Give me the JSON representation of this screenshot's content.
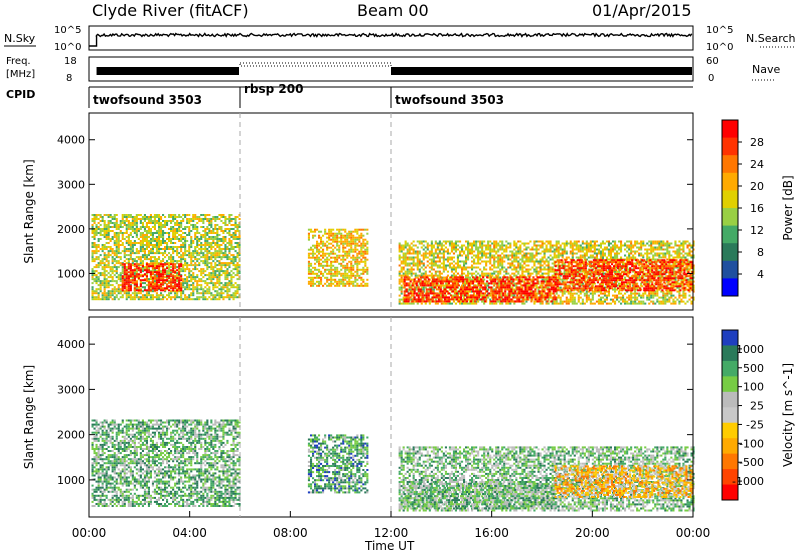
{
  "header": {
    "station": "Clyde River (fitACF)",
    "beam": "Beam 00",
    "date": "01/Apr/2015"
  },
  "strip_panels": {
    "nsky_label": "N.Sky",
    "nsky_ticks": [
      "10^5",
      "10^0"
    ],
    "nsearch_label": "N.Search",
    "nsearch_ticks": [
      "10^5",
      "10^0"
    ],
    "freq_label_line1": "Freq.",
    "freq_label_line2": "[MHz]",
    "freq_ticks": [
      "18",
      "8"
    ],
    "nave_label": "Nave",
    "nave_ticks": [
      "60",
      "0"
    ],
    "cpid_label": "CPID",
    "cpid_segments": [
      {
        "name": "twofsound 3503",
        "start": 0,
        "end": 6
      },
      {
        "name": "rbsp 200",
        "start": 6,
        "end": 12
      },
      {
        "name": "twofsound 3503",
        "start": 12,
        "end": 24
      }
    ]
  },
  "chart_data": [
    {
      "type": "heatmap",
      "panel": "power",
      "ylabel": "Slant Range [km]",
      "xlabel": "Time UT",
      "xlim": [
        0,
        24
      ],
      "ylim": [
        180,
        4600
      ],
      "yticks": [
        "1000",
        "2000",
        "3000",
        "4000"
      ],
      "xticks": [
        "00:00",
        "04:00",
        "08:00",
        "12:00",
        "16:00",
        "20:00",
        "00:00"
      ],
      "colorbar": {
        "label": "Power [dB]",
        "ticks": [
          "28",
          "24",
          "20",
          "16",
          "12",
          "8",
          "4"
        ],
        "colors": [
          "#ff0000",
          "#ff3300",
          "#ff7700",
          "#ffaa00",
          "#e0d000",
          "#99d044",
          "#44aa66",
          "#2a7a5a",
          "#1f4f9f",
          "#0000ff"
        ]
      },
      "regions": [
        {
          "t0": 0.1,
          "t1": 6.0,
          "r0": 400,
          "r1": 2300,
          "level": 0.5
        },
        {
          "t0": 1.3,
          "t1": 3.7,
          "r0": 600,
          "r1": 1200,
          "level": 0.95
        },
        {
          "t0": 8.7,
          "t1": 11.1,
          "r0": 700,
          "r1": 2000,
          "level": 0.6
        },
        {
          "t0": 12.3,
          "t1": 24.0,
          "r0": 300,
          "r1": 1700,
          "level": 0.55
        },
        {
          "t0": 12.5,
          "t1": 18.5,
          "r0": 350,
          "r1": 900,
          "level": 0.95
        },
        {
          "t0": 18.5,
          "t1": 24.0,
          "r0": 600,
          "r1": 1300,
          "level": 0.9
        }
      ]
    },
    {
      "type": "heatmap",
      "panel": "velocity",
      "ylabel": "Slant Range [km]",
      "xlabel": "Time UT",
      "xlim": [
        0,
        24
      ],
      "ylim": [
        180,
        4600
      ],
      "yticks": [
        "1000",
        "2000",
        "3000",
        "4000"
      ],
      "xticks": [
        "00:00",
        "04:00",
        "08:00",
        "12:00",
        "16:00",
        "20:00",
        "00:00"
      ],
      "colorbar": {
        "label": "Velocity [m s^-1]",
        "ticks": [
          "1000",
          "500",
          "100",
          "25",
          "-25",
          "-100",
          "-500",
          "-1000"
        ],
        "colors": [
          "#1f3fbf",
          "#2a7a5a",
          "#44aa66",
          "#77cc44",
          "#bbbbbb",
          "#c8c8c8",
          "#ffcc00",
          "#ffaa00",
          "#ff7700",
          "#ff4400",
          "#ff0000"
        ]
      },
      "regions": [
        {
          "t0": 0.1,
          "t1": 6.0,
          "r0": 400,
          "r1": 2300,
          "level": 0.75
        },
        {
          "t0": 8.7,
          "t1": 11.1,
          "r0": 700,
          "r1": 2000,
          "level": 0.8
        },
        {
          "t0": 12.3,
          "t1": 24.0,
          "r0": 300,
          "r1": 1700,
          "level": 0.7
        },
        {
          "t0": 12.5,
          "t1": 18.5,
          "r0": 350,
          "r1": 900,
          "level": 0.72
        },
        {
          "t0": 18.5,
          "t1": 24.0,
          "r0": 600,
          "r1": 1300,
          "level": 0.35
        }
      ]
    }
  ],
  "footer": {
    "time_label": "Time UT"
  },
  "colors": {
    "axis": "#000000",
    "divider": "#aaaaaa"
  }
}
